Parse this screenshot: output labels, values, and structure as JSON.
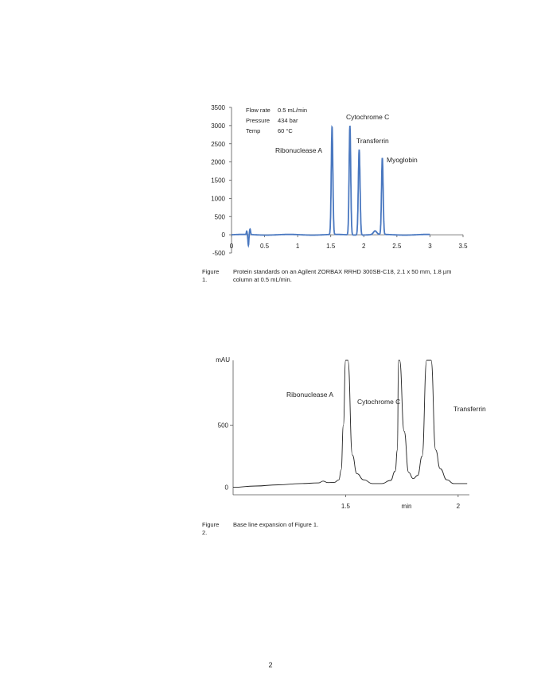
{
  "page_number": "2",
  "figure1": {
    "caption_label": "Figure 1.",
    "caption_text": "Protein standards on an Agilent ZORBAX RRHD 300SB-C18, 2.1 x 50 mm, 1.8 µm column at 0.5 mL/min.",
    "conditions": [
      {
        "label": "Flow rate",
        "value": "0.5 mL/min"
      },
      {
        "label": "Pressure",
        "value": "434 bar"
      },
      {
        "label": "Temp",
        "value": "60 °C"
      }
    ]
  },
  "figure2": {
    "caption_label": "Figure 2.",
    "caption_text": "Base line expansion of Figure 1."
  },
  "chart_data": [
    {
      "type": "line",
      "title": "",
      "xlabel": "",
      "ylabel": "",
      "xlim": [
        0,
        3.5
      ],
      "ylim": [
        -500,
        3500
      ],
      "x_ticks": [
        "0",
        "0.5",
        "1",
        "1.5",
        "2",
        "2.5",
        "3",
        "3.5"
      ],
      "y_ticks": [
        "3500",
        "3000",
        "2500",
        "2000",
        "1500",
        "1000",
        "500",
        "0",
        "-500"
      ],
      "line_color": "#4a78c0",
      "grid": false,
      "peaks": [
        {
          "name": "Ribonuclease A",
          "rt": 1.52,
          "height": 2950,
          "width": 0.012
        },
        {
          "name": "Cytochrome C",
          "rt": 1.79,
          "height": 3000,
          "width": 0.012
        },
        {
          "name": "Transferrin",
          "rt": 1.93,
          "height": 2350,
          "width": 0.013
        },
        {
          "name": "Myoglobin",
          "rt": 2.28,
          "height": 2100,
          "width": 0.012
        }
      ],
      "minor_features": [
        {
          "rt": 0.28,
          "height": 150
        },
        {
          "rt": 2.17,
          "height": 100
        }
      ]
    },
    {
      "type": "line",
      "title": "",
      "xlabel": "min",
      "ylabel": "mAU",
      "xlim": [
        1.0,
        2.05
      ],
      "ylim": [
        -60,
        1020
      ],
      "x_ticks": [
        "1.5",
        "2"
      ],
      "y_ticks": [
        "500",
        "0"
      ],
      "line_color": "#222222",
      "grid": false,
      "series": [
        {
          "x": [
            1.0,
            1.1,
            1.2,
            1.3,
            1.38,
            1.4,
            1.42,
            1.45,
            1.47,
            1.48,
            1.49,
            1.5,
            1.51,
            1.53,
            1.55,
            1.58,
            1.62,
            1.66,
            1.7,
            1.72,
            1.73,
            1.735,
            1.74,
            1.76,
            1.78,
            1.8,
            1.82,
            1.84,
            1.86,
            1.88,
            1.9,
            1.92,
            1.95,
            1.98,
            2.02,
            2.04
          ],
          "y": [
            0,
            10,
            20,
            30,
            35,
            50,
            38,
            40,
            60,
            140,
            500,
            1020,
            1020,
            260,
            110,
            60,
            30,
            30,
            55,
            130,
            300,
            1020,
            1020,
            450,
            120,
            70,
            95,
            250,
            1020,
            1020,
            300,
            150,
            60,
            30,
            30,
            30
          ]
        }
      ],
      "annotations": [
        "Ribonuclease A",
        "Cytochrome C",
        "Transferrin"
      ]
    }
  ]
}
